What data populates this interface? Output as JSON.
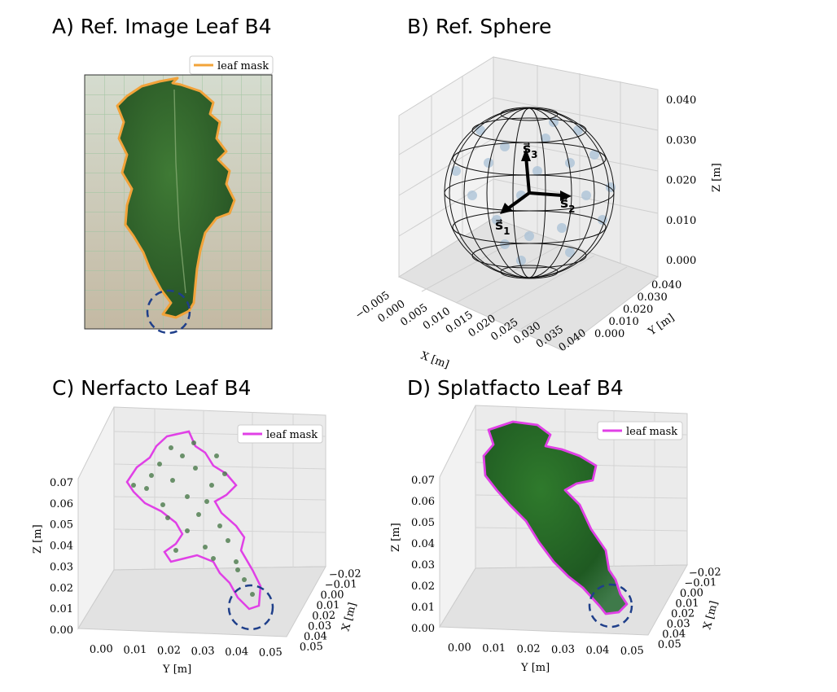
{
  "panels": {
    "a": {
      "title": "A) Ref. Image Leaf B4",
      "legend": "leaf mask"
    },
    "b": {
      "title": "B) Ref. Sphere"
    },
    "c": {
      "title": "C) Nerfacto Leaf B4",
      "legend": "leaf mask"
    },
    "d": {
      "title": "D) Splatfacto Leaf B4",
      "legend": "leaf mask"
    }
  },
  "colors": {
    "leaf_mask_orange": "#f2a33a",
    "leaf_mask_magenta": "#e040e6",
    "highlight_circle": "#1f3f8a",
    "leaf_green": "#2f6b2a",
    "sphere_points": "#a9c1d6"
  },
  "chart_data": [
    {
      "type": "image",
      "title": "A) Ref. Image Leaf B4",
      "legend": [
        "leaf mask"
      ]
    },
    {
      "type": "scatter",
      "projection": "3d",
      "title": "B) Ref. Sphere",
      "xlabel": "X [m]",
      "ylabel": "Y [m]",
      "zlabel": "Z [m]",
      "xticks": [
        "−0.005",
        "0.000",
        "0.005",
        "0.010",
        "0.015",
        "0.020",
        "0.025",
        "0.030",
        "0.035",
        "0.040"
      ],
      "yticks": [
        "0.000",
        "0.010",
        "0.020",
        "0.030",
        "0.040"
      ],
      "zticks": [
        "0.000",
        "0.010",
        "0.020",
        "0.030",
        "0.040"
      ],
      "vector_labels": [
        "s1",
        "s2",
        "s3"
      ]
    },
    {
      "type": "scatter",
      "projection": "3d",
      "title": "C) Nerfacto Leaf B4",
      "xlabel": "X [m]",
      "ylabel": "Y [m]",
      "zlabel": "Z [m]",
      "xticks": [
        "−0.02",
        "−0.01",
        "0.00",
        "0.01",
        "0.02",
        "0.03",
        "0.04",
        "0.05"
      ],
      "yticks": [
        "0.00",
        "0.01",
        "0.02",
        "0.03",
        "0.04",
        "0.05"
      ],
      "zticks": [
        "0.00",
        "0.01",
        "0.02",
        "0.03",
        "0.04",
        "0.05",
        "0.06",
        "0.07"
      ],
      "legend": [
        "leaf mask"
      ]
    },
    {
      "type": "scatter",
      "projection": "3d",
      "title": "D) Splatfacto Leaf B4",
      "xlabel": "X [m]",
      "ylabel": "Y [m]",
      "zlabel": "Z [m]",
      "xticks": [
        "−0.02",
        "−0.01",
        "0.00",
        "0.01",
        "0.02",
        "0.03",
        "0.04",
        "0.05"
      ],
      "yticks": [
        "0.00",
        "0.01",
        "0.02",
        "0.03",
        "0.04",
        "0.05"
      ],
      "zticks": [
        "0.00",
        "0.01",
        "0.02",
        "0.03",
        "0.04",
        "0.05",
        "0.06",
        "0.07"
      ],
      "legend": [
        "leaf mask"
      ]
    }
  ]
}
